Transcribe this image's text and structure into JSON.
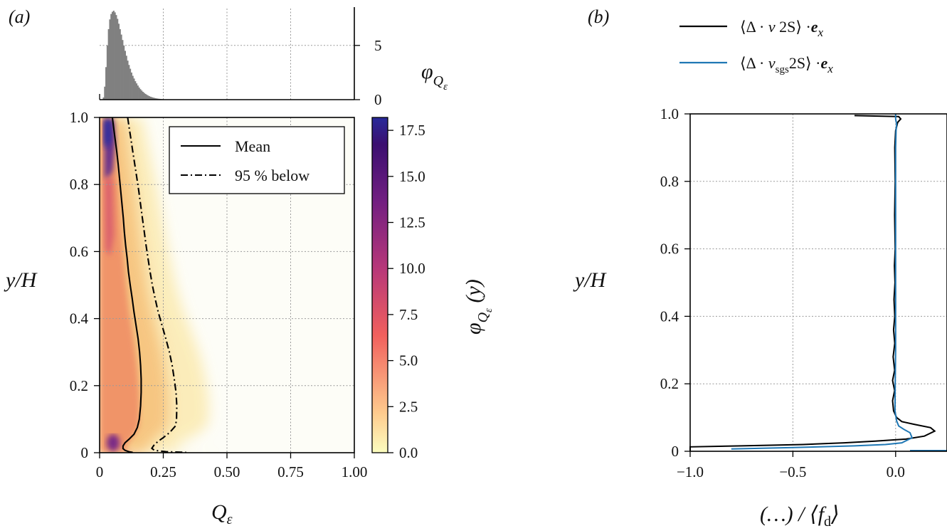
{
  "panels": {
    "a": {
      "label": "(a)"
    },
    "b": {
      "label": "(b)"
    }
  },
  "chart_data": [
    {
      "id": "a-histogram",
      "type": "bar",
      "ylabel": "φ_Qε",
      "x_range": [
        0,
        1.0
      ],
      "ylim": [
        0,
        8.4
      ],
      "yticks": [
        0,
        5
      ],
      "grid": true,
      "bin_width": 0.005,
      "color": "#808080",
      "bins": [
        {
          "x": 0.015,
          "v": 0.2
        },
        {
          "x": 0.02,
          "v": 1.2
        },
        {
          "x": 0.025,
          "v": 3.0
        },
        {
          "x": 0.03,
          "v": 5.0
        },
        {
          "x": 0.035,
          "v": 6.5
        },
        {
          "x": 0.04,
          "v": 7.4
        },
        {
          "x": 0.045,
          "v": 7.9
        },
        {
          "x": 0.05,
          "v": 8.1
        },
        {
          "x": 0.055,
          "v": 8.2
        },
        {
          "x": 0.06,
          "v": 8.05
        },
        {
          "x": 0.065,
          "v": 7.8
        },
        {
          "x": 0.07,
          "v": 7.45
        },
        {
          "x": 0.075,
          "v": 7.0
        },
        {
          "x": 0.08,
          "v": 6.5
        },
        {
          "x": 0.085,
          "v": 6.0
        },
        {
          "x": 0.09,
          "v": 5.5
        },
        {
          "x": 0.095,
          "v": 5.0
        },
        {
          "x": 0.1,
          "v": 4.5
        },
        {
          "x": 0.105,
          "v": 4.05
        },
        {
          "x": 0.11,
          "v": 3.6
        },
        {
          "x": 0.115,
          "v": 3.2
        },
        {
          "x": 0.12,
          "v": 2.85
        },
        {
          "x": 0.125,
          "v": 2.5
        },
        {
          "x": 0.13,
          "v": 2.2
        },
        {
          "x": 0.135,
          "v": 1.95
        },
        {
          "x": 0.14,
          "v": 1.7
        },
        {
          "x": 0.145,
          "v": 1.5
        },
        {
          "x": 0.15,
          "v": 1.3
        },
        {
          "x": 0.155,
          "v": 1.12
        },
        {
          "x": 0.16,
          "v": 0.97
        },
        {
          "x": 0.165,
          "v": 0.84
        },
        {
          "x": 0.17,
          "v": 0.72
        },
        {
          "x": 0.175,
          "v": 0.62
        },
        {
          "x": 0.18,
          "v": 0.53
        },
        {
          "x": 0.185,
          "v": 0.45
        },
        {
          "x": 0.19,
          "v": 0.38
        },
        {
          "x": 0.195,
          "v": 0.32
        },
        {
          "x": 0.2,
          "v": 0.27
        },
        {
          "x": 0.205,
          "v": 0.23
        },
        {
          "x": 0.21,
          "v": 0.19
        },
        {
          "x": 0.215,
          "v": 0.16
        },
        {
          "x": 0.22,
          "v": 0.13
        },
        {
          "x": 0.225,
          "v": 0.11
        },
        {
          "x": 0.23,
          "v": 0.09
        },
        {
          "x": 0.235,
          "v": 0.075
        },
        {
          "x": 0.24,
          "v": 0.06
        },
        {
          "x": 0.245,
          "v": 0.05
        },
        {
          "x": 0.25,
          "v": 0.04
        },
        {
          "x": 0.26,
          "v": 0.03
        },
        {
          "x": 0.27,
          "v": 0.02
        },
        {
          "x": 0.28,
          "v": 0.015
        },
        {
          "x": 0.3,
          "v": 0.01
        }
      ]
    },
    {
      "id": "a-heatmap",
      "type": "heatmap",
      "xlabel": "Qε",
      "ylabel": "y/H",
      "xlim": [
        0,
        1.0
      ],
      "ylim": [
        0,
        1.0
      ],
      "xticks": [
        "0",
        "0.25",
        "0.50",
        "0.75",
        "1.00"
      ],
      "yticks": [
        "0",
        "0.2",
        "0.4",
        "0.6",
        "0.8",
        "1.0"
      ],
      "grid": true,
      "colorbar": {
        "label": "φ_Qε (y)",
        "range": [
          0,
          18.2
        ],
        "ticks": [
          "0.0",
          "2.5",
          "5.0",
          "7.5",
          "10.0",
          "12.5",
          "15.0",
          "17.5"
        ],
        "colormap": [
          "#fcfdbf",
          "#feca8d",
          "#f1605d",
          "#b73779",
          "#721f81",
          "#3b0f70",
          "#282a9a"
        ]
      },
      "legend": {
        "position": "upper right",
        "entries": [
          "Mean",
          "95 % below"
        ]
      },
      "series": [
        {
          "name": "Mean",
          "style": "solid",
          "points": [
            [
              0.05,
              1.0
            ],
            [
              0.055,
              0.97
            ],
            [
              0.06,
              0.94
            ],
            [
              0.067,
              0.9
            ],
            [
              0.073,
              0.86
            ],
            [
              0.078,
              0.82
            ],
            [
              0.083,
              0.78
            ],
            [
              0.088,
              0.74
            ],
            [
              0.093,
              0.7
            ],
            [
              0.097,
              0.66
            ],
            [
              0.102,
              0.62
            ],
            [
              0.108,
              0.58
            ],
            [
              0.113,
              0.54
            ],
            [
              0.12,
              0.5
            ],
            [
              0.128,
              0.46
            ],
            [
              0.135,
              0.42
            ],
            [
              0.143,
              0.38
            ],
            [
              0.151,
              0.34
            ],
            [
              0.157,
              0.3
            ],
            [
              0.161,
              0.26
            ],
            [
              0.163,
              0.22
            ],
            [
              0.163,
              0.18
            ],
            [
              0.161,
              0.14
            ],
            [
              0.156,
              0.1
            ],
            [
              0.148,
              0.075
            ],
            [
              0.135,
              0.055
            ],
            [
              0.115,
              0.04
            ],
            [
              0.1,
              0.03
            ],
            [
              0.092,
              0.02
            ],
            [
              0.092,
              0.012
            ],
            [
              0.1,
              0.007
            ],
            [
              0.115,
              0.003
            ],
            [
              0.13,
              0.001
            ]
          ]
        },
        {
          "name": "95 % below",
          "style": "dashdot",
          "points": [
            [
              0.11,
              1.0
            ],
            [
              0.116,
              0.97
            ],
            [
              0.122,
              0.94
            ],
            [
              0.13,
              0.9
            ],
            [
              0.138,
              0.86
            ],
            [
              0.146,
              0.82
            ],
            [
              0.154,
              0.78
            ],
            [
              0.161,
              0.74
            ],
            [
              0.168,
              0.7
            ],
            [
              0.175,
              0.66
            ],
            [
              0.182,
              0.62
            ],
            [
              0.19,
              0.58
            ],
            [
              0.198,
              0.54
            ],
            [
              0.207,
              0.5
            ],
            [
              0.218,
              0.46
            ],
            [
              0.23,
              0.42
            ],
            [
              0.245,
              0.38
            ],
            [
              0.26,
              0.34
            ],
            [
              0.274,
              0.3
            ],
            [
              0.285,
              0.26
            ],
            [
              0.293,
              0.22
            ],
            [
              0.3,
              0.18
            ],
            [
              0.303,
              0.14
            ],
            [
              0.302,
              0.1
            ],
            [
              0.298,
              0.08
            ],
            [
              0.275,
              0.06
            ],
            [
              0.25,
              0.045
            ],
            [
              0.228,
              0.033
            ],
            [
              0.213,
              0.022
            ],
            [
              0.205,
              0.013
            ],
            [
              0.215,
              0.007
            ],
            [
              0.26,
              0.003
            ],
            [
              0.34,
              0.001
            ]
          ]
        }
      ]
    },
    {
      "id": "b-profile",
      "type": "line",
      "xlabel": "(…) / ⟨f_d⟩",
      "ylabel": "y/H",
      "xlim": [
        -1.0,
        0.25
      ],
      "ylim": [
        0,
        1.0
      ],
      "xticks": [
        "−1.0",
        "−0.5",
        "0.0"
      ],
      "yticks": [
        "0",
        "0.2",
        "0.4",
        "0.6",
        "0.8",
        "1.0"
      ],
      "grid": true,
      "legend": {
        "position": "above plot"
      },
      "series": [
        {
          "name": "⟨Δ·ν 2S⟩ ·e_x",
          "color": "#000000",
          "points": [
            [
              -1.0,
              0.0
            ],
            [
              -1.0,
              0.013
            ],
            [
              -0.75,
              0.016
            ],
            [
              -0.45,
              0.02
            ],
            [
              -0.25,
              0.025
            ],
            [
              -0.1,
              0.03
            ],
            [
              0.05,
              0.036
            ],
            [
              0.14,
              0.045
            ],
            [
              0.19,
              0.06
            ],
            [
              0.17,
              0.07
            ],
            [
              0.09,
              0.08
            ],
            [
              0.03,
              0.088
            ],
            [
              0.005,
              0.1
            ],
            [
              -0.01,
              0.12
            ],
            [
              -0.015,
              0.15
            ],
            [
              -0.005,
              0.18
            ],
            [
              -0.015,
              0.21
            ],
            [
              -0.005,
              0.24
            ],
            [
              -0.012,
              0.28
            ],
            [
              -0.004,
              0.32
            ],
            [
              -0.01,
              0.36
            ],
            [
              -0.004,
              0.4
            ],
            [
              -0.008,
              0.45
            ],
            [
              -0.003,
              0.5
            ],
            [
              -0.006,
              0.55
            ],
            [
              -0.002,
              0.6
            ],
            [
              -0.005,
              0.7
            ],
            [
              -0.002,
              0.8
            ],
            [
              -0.004,
              0.9
            ],
            [
              0.0,
              0.95
            ],
            [
              0.01,
              0.975
            ],
            [
              0.025,
              0.985
            ],
            [
              0.015,
              0.992
            ],
            [
              -0.2,
              0.995
            ]
          ]
        },
        {
          "name": "⟨Δ·ν_sgs 2S⟩ ·e_x",
          "color": "#1f77b4",
          "points": [
            [
              -0.8,
              0.007
            ],
            [
              -0.5,
              0.011
            ],
            [
              -0.2,
              0.016
            ],
            [
              -0.05,
              0.02
            ],
            [
              0.03,
              0.025
            ],
            [
              0.08,
              0.04
            ],
            [
              0.07,
              0.055
            ],
            [
              0.04,
              0.065
            ],
            [
              0.015,
              0.075
            ],
            [
              0.005,
              0.09
            ],
            [
              -0.003,
              0.12
            ],
            [
              -0.002,
              0.2
            ],
            [
              0.0,
              0.3
            ],
            [
              0.0,
              0.5
            ],
            [
              0.0,
              0.7
            ],
            [
              0.0,
              0.9
            ],
            [
              0.002,
              0.95
            ],
            [
              0.005,
              0.97
            ],
            [
              0.0,
              0.985
            ],
            [
              0.0,
              1.0
            ]
          ]
        }
      ]
    }
  ]
}
